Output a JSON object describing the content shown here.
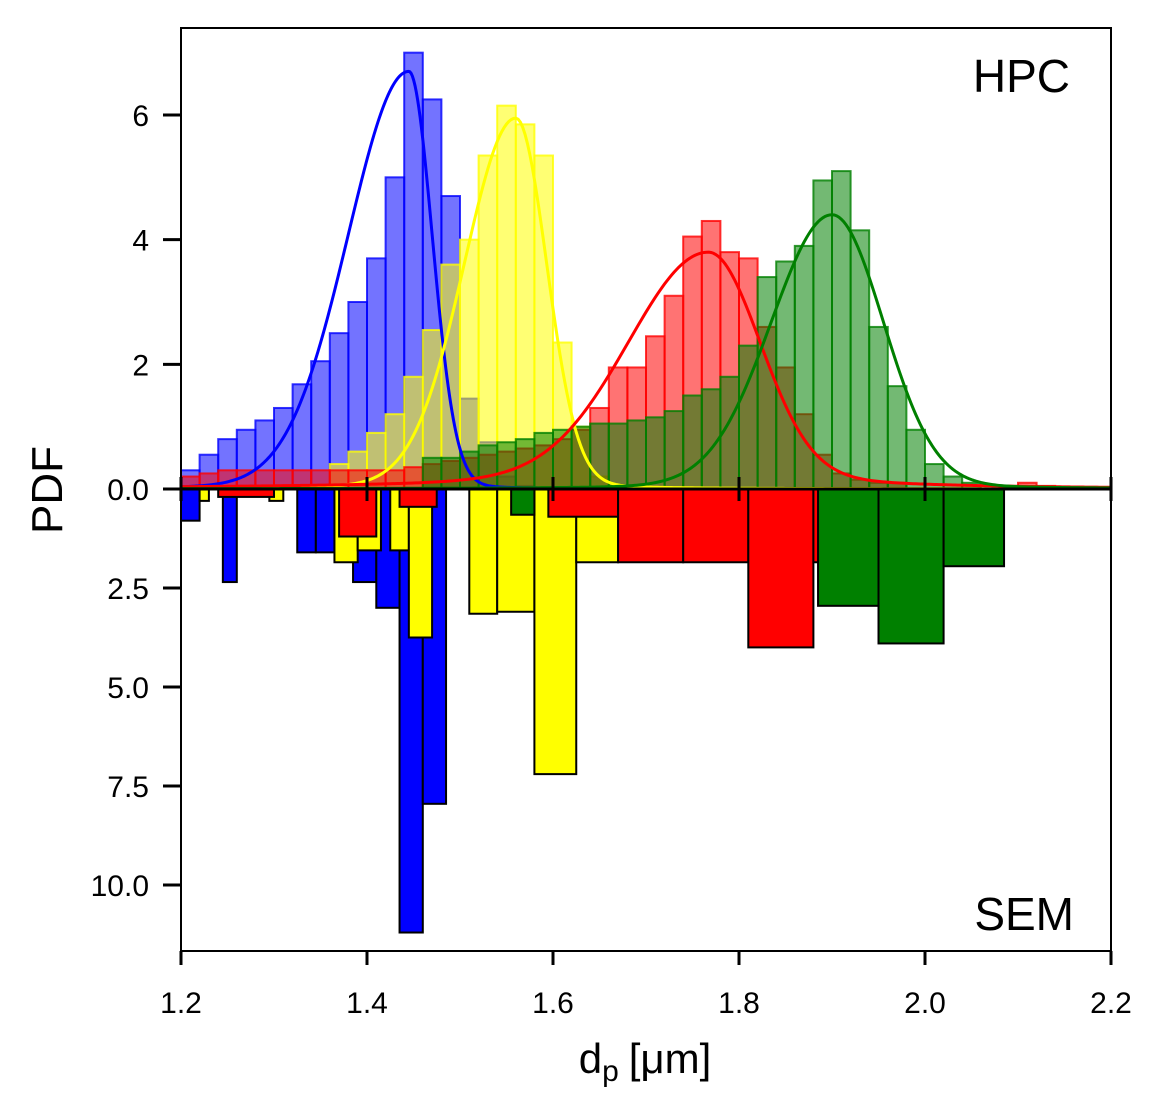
{
  "chart_data": {
    "type": "bar",
    "subtype": "mirrored histogram with fitted density curves",
    "xlabel_main": "d",
    "xlabel_sub": "p",
    "xlabel_unit": "[μm]",
    "ylabel": "PDF",
    "xlim": [
      1.2,
      2.2
    ],
    "upper_ylim": [
      0,
      7.3
    ],
    "lower_ylim": [
      0,
      11.7
    ],
    "x_ticks": [
      "1.2",
      "1.4",
      "1.6",
      "1.8",
      "2.0",
      "2.2"
    ],
    "upper_y_ticks": [
      "0.0",
      "2",
      "4",
      "6"
    ],
    "lower_y_ticks": [
      "2.5",
      "5.0",
      "7.5",
      "10.0"
    ],
    "upper_label": "HPC",
    "lower_label": "SEM",
    "colors": {
      "blue": "#0000ff",
      "yellow": "#ffff00",
      "red": "#ff0000",
      "green": "#008000"
    },
    "hpc_histograms": [
      {
        "color": "#0000ff",
        "bins": [
          [
            1.2,
            1.22,
            0.3
          ],
          [
            1.22,
            1.24,
            0.55
          ],
          [
            1.24,
            1.26,
            0.8
          ],
          [
            1.26,
            1.28,
            0.95
          ],
          [
            1.28,
            1.3,
            1.1
          ],
          [
            1.3,
            1.32,
            1.3
          ],
          [
            1.32,
            1.34,
            1.68
          ],
          [
            1.34,
            1.36,
            2.05
          ],
          [
            1.36,
            1.38,
            2.5
          ],
          [
            1.38,
            1.4,
            3.0
          ],
          [
            1.4,
            1.42,
            3.7
          ],
          [
            1.42,
            1.44,
            5.0
          ],
          [
            1.44,
            1.46,
            7.0
          ],
          [
            1.46,
            1.48,
            6.25
          ],
          [
            1.48,
            1.5,
            4.7
          ],
          [
            1.5,
            1.52,
            1.45
          ],
          [
            1.52,
            1.54,
            0.75
          ],
          [
            1.54,
            1.56,
            0.2
          ],
          [
            1.56,
            1.58,
            0.05
          ]
        ]
      },
      {
        "color": "#ffff00",
        "bins": [
          [
            1.36,
            1.38,
            0.4
          ],
          [
            1.38,
            1.4,
            0.6
          ],
          [
            1.4,
            1.42,
            0.9
          ],
          [
            1.42,
            1.44,
            1.2
          ],
          [
            1.44,
            1.46,
            1.8
          ],
          [
            1.46,
            1.48,
            2.55
          ],
          [
            1.48,
            1.5,
            3.6
          ],
          [
            1.5,
            1.52,
            4.0
          ],
          [
            1.52,
            1.54,
            5.35
          ],
          [
            1.54,
            1.56,
            6.15
          ],
          [
            1.56,
            1.58,
            5.85
          ],
          [
            1.58,
            1.6,
            5.35
          ],
          [
            1.6,
            1.62,
            2.35
          ],
          [
            1.62,
            1.64,
            1.0
          ],
          [
            1.64,
            1.66,
            0.2
          ]
        ]
      },
      {
        "color": "#ff0000",
        "bins": [
          [
            1.2,
            1.22,
            0.2
          ],
          [
            1.22,
            1.24,
            0.25
          ],
          [
            1.24,
            1.26,
            0.3
          ],
          [
            1.26,
            1.28,
            0.3
          ],
          [
            1.28,
            1.3,
            0.3
          ],
          [
            1.3,
            1.32,
            0.3
          ],
          [
            1.32,
            1.34,
            0.3
          ],
          [
            1.34,
            1.36,
            0.3
          ],
          [
            1.36,
            1.38,
            0.3
          ],
          [
            1.38,
            1.4,
            0.3
          ],
          [
            1.4,
            1.42,
            0.3
          ],
          [
            1.42,
            1.44,
            0.3
          ],
          [
            1.44,
            1.46,
            0.35
          ],
          [
            1.46,
            1.48,
            0.4
          ],
          [
            1.48,
            1.5,
            0.45
          ],
          [
            1.5,
            1.52,
            0.5
          ],
          [
            1.52,
            1.54,
            0.55
          ],
          [
            1.54,
            1.56,
            0.6
          ],
          [
            1.56,
            1.58,
            0.65
          ],
          [
            1.58,
            1.6,
            0.7
          ],
          [
            1.6,
            1.62,
            0.8
          ],
          [
            1.62,
            1.64,
            0.95
          ],
          [
            1.64,
            1.66,
            1.3
          ],
          [
            1.66,
            1.68,
            1.95
          ],
          [
            1.68,
            1.7,
            1.95
          ],
          [
            1.7,
            1.72,
            2.45
          ],
          [
            1.72,
            1.74,
            3.1
          ],
          [
            1.74,
            1.76,
            4.05
          ],
          [
            1.76,
            1.78,
            4.3
          ],
          [
            1.78,
            1.8,
            3.8
          ],
          [
            1.8,
            1.82,
            3.7
          ],
          [
            1.82,
            1.84,
            2.6
          ],
          [
            1.84,
            1.86,
            1.95
          ],
          [
            1.86,
            1.88,
            1.2
          ],
          [
            1.88,
            1.9,
            0.55
          ],
          [
            1.9,
            1.92,
            0.25
          ],
          [
            1.92,
            1.94,
            0.15
          ],
          [
            1.94,
            1.96,
            0.1
          ],
          [
            1.96,
            1.98,
            0.1
          ],
          [
            2.1,
            2.12,
            0.1
          ],
          [
            2.12,
            2.14,
            0.05
          ]
        ]
      },
      {
        "color": "#008000",
        "bins": [
          [
            1.46,
            1.48,
            0.5
          ],
          [
            1.48,
            1.5,
            0.5
          ],
          [
            1.5,
            1.52,
            0.6
          ],
          [
            1.52,
            1.54,
            0.7
          ],
          [
            1.54,
            1.56,
            0.75
          ],
          [
            1.56,
            1.58,
            0.8
          ],
          [
            1.58,
            1.6,
            0.9
          ],
          [
            1.6,
            1.62,
            0.95
          ],
          [
            1.62,
            1.64,
            1.0
          ],
          [
            1.64,
            1.66,
            1.05
          ],
          [
            1.66,
            1.68,
            1.05
          ],
          [
            1.68,
            1.7,
            1.1
          ],
          [
            1.7,
            1.72,
            1.15
          ],
          [
            1.72,
            1.74,
            1.25
          ],
          [
            1.74,
            1.76,
            1.5
          ],
          [
            1.76,
            1.78,
            1.6
          ],
          [
            1.78,
            1.8,
            1.8
          ],
          [
            1.8,
            1.82,
            2.3
          ],
          [
            1.82,
            1.84,
            3.4
          ],
          [
            1.84,
            1.86,
            3.65
          ],
          [
            1.86,
            1.88,
            3.9
          ],
          [
            1.88,
            1.9,
            4.95
          ],
          [
            1.9,
            1.92,
            5.1
          ],
          [
            1.92,
            1.94,
            4.15
          ],
          [
            1.94,
            1.96,
            2.6
          ],
          [
            1.96,
            1.98,
            1.65
          ],
          [
            1.98,
            2.0,
            0.95
          ],
          [
            2.0,
            2.02,
            0.4
          ],
          [
            2.02,
            2.04,
            0.2
          ],
          [
            2.04,
            2.06,
            0.1
          ]
        ]
      }
    ],
    "hpc_fits": [
      {
        "color": "#0000ff",
        "peak_x": 1.445,
        "peak_y": 6.7,
        "sigma_left": 0.065,
        "sigma_right": 0.025,
        "baseline": 0.1,
        "range": [
          1.2,
          1.75
        ]
      },
      {
        "color": "#ffff00",
        "peak_x": 1.56,
        "peak_y": 5.95,
        "sigma_left": 0.055,
        "sigma_right": 0.033,
        "baseline": 0.12,
        "range": [
          1.2,
          2.2
        ]
      },
      {
        "color": "#ff0000",
        "peak_x": 1.767,
        "peak_y": 3.8,
        "sigma_left": 0.085,
        "sigma_right": 0.055,
        "baseline": 0.3,
        "range": [
          1.2,
          2.2
        ]
      },
      {
        "color": "#008000",
        "peak_x": 1.9,
        "peak_y": 4.4,
        "sigma_left": 0.065,
        "sigma_right": 0.055,
        "baseline": 0.1,
        "range": [
          1.2,
          2.2
        ]
      }
    ],
    "sem_histograms": [
      {
        "color": "#0000ff",
        "bins": [
          [
            1.2,
            1.22,
            0.8
          ],
          [
            1.245,
            1.26,
            2.35
          ],
          [
            1.325,
            1.345,
            1.6
          ],
          [
            1.345,
            1.365,
            1.6
          ],
          [
            1.385,
            1.41,
            2.35
          ],
          [
            1.41,
            1.435,
            3.0
          ],
          [
            1.435,
            1.46,
            11.2
          ],
          [
            1.46,
            1.485,
            7.95
          ]
        ]
      },
      {
        "color": "#ffff00",
        "bins": [
          [
            1.22,
            1.23,
            0.3
          ],
          [
            1.295,
            1.31,
            0.3
          ],
          [
            1.365,
            1.39,
            1.85
          ],
          [
            1.39,
            1.415,
            1.55
          ],
          [
            1.425,
            1.445,
            1.55
          ],
          [
            1.445,
            1.47,
            3.75
          ],
          [
            1.51,
            1.54,
            3.15
          ],
          [
            1.54,
            1.58,
            3.1
          ],
          [
            1.58,
            1.625,
            7.2
          ],
          [
            1.625,
            1.67,
            1.85
          ]
        ]
      },
      {
        "color": "#ff0000",
        "bins": [
          [
            1.24,
            1.3,
            0.2
          ],
          [
            1.37,
            1.41,
            1.2
          ],
          [
            1.435,
            1.475,
            0.45
          ],
          [
            1.595,
            1.67,
            0.7
          ],
          [
            1.67,
            1.74,
            1.85
          ],
          [
            1.74,
            1.81,
            1.85
          ],
          [
            1.81,
            1.88,
            4.0
          ],
          [
            1.88,
            1.95,
            1.85
          ]
        ]
      },
      {
        "color": "#008000",
        "bins": [
          [
            1.555,
            1.58,
            0.65
          ],
          [
            1.885,
            1.95,
            2.95
          ],
          [
            1.95,
            2.02,
            3.9
          ],
          [
            2.02,
            2.085,
            1.95
          ]
        ]
      }
    ]
  }
}
